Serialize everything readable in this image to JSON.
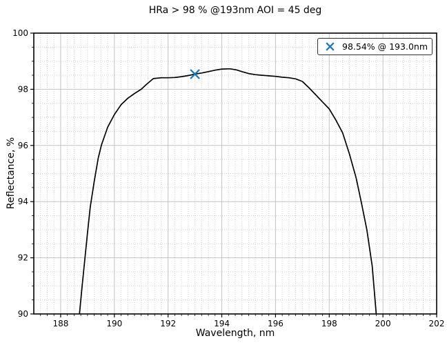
{
  "chart_data": {
    "type": "line",
    "title": "HRa > 98 % @193nm AOI = 45 deg",
    "xlabel": "Wavelength, nm",
    "ylabel": "Reflectance, %",
    "xlim": [
      187,
      202
    ],
    "ylim": [
      90,
      100
    ],
    "xticks": [
      188,
      190,
      192,
      194,
      196,
      198,
      200,
      202
    ],
    "yticks": [
      90,
      92,
      94,
      96,
      98,
      100
    ],
    "x_minor_step": 0.25,
    "y_minor_step": 0.5,
    "grid": true,
    "legend": {
      "label": "98.54% @ 193.0nm",
      "position": "upper right"
    },
    "marker": {
      "x": 193.0,
      "y": 98.54,
      "shape": "x",
      "color": "#1f77b4"
    },
    "series": [
      {
        "name": "reflectance",
        "color": "#000000",
        "points": [
          [
            188.7,
            90.0
          ],
          [
            188.8,
            91.0
          ],
          [
            188.9,
            91.95
          ],
          [
            189.0,
            92.9
          ],
          [
            189.1,
            93.8
          ],
          [
            189.25,
            94.72
          ],
          [
            189.4,
            95.55
          ],
          [
            189.52,
            96.02
          ],
          [
            189.75,
            96.65
          ],
          [
            190.0,
            97.1
          ],
          [
            190.25,
            97.45
          ],
          [
            190.5,
            97.68
          ],
          [
            190.75,
            97.85
          ],
          [
            191.0,
            98.0
          ],
          [
            191.2,
            98.18
          ],
          [
            191.45,
            98.38
          ],
          [
            191.75,
            98.41
          ],
          [
            192.0,
            98.41
          ],
          [
            192.25,
            98.42
          ],
          [
            192.5,
            98.45
          ],
          [
            192.75,
            98.49
          ],
          [
            193.0,
            98.54
          ],
          [
            193.25,
            98.58
          ],
          [
            193.5,
            98.63
          ],
          [
            193.75,
            98.68
          ],
          [
            194.0,
            98.72
          ],
          [
            194.3,
            98.73
          ],
          [
            194.55,
            98.69
          ],
          [
            194.75,
            98.63
          ],
          [
            195.0,
            98.56
          ],
          [
            195.25,
            98.52
          ],
          [
            195.5,
            98.5
          ],
          [
            195.75,
            98.48
          ],
          [
            196.0,
            98.46
          ],
          [
            196.25,
            98.43
          ],
          [
            196.5,
            98.41
          ],
          [
            196.75,
            98.37
          ],
          [
            197.0,
            98.28
          ],
          [
            197.25,
            98.05
          ],
          [
            197.5,
            97.8
          ],
          [
            197.75,
            97.55
          ],
          [
            198.0,
            97.3
          ],
          [
            198.25,
            96.9
          ],
          [
            198.5,
            96.45
          ],
          [
            198.75,
            95.7
          ],
          [
            199.0,
            94.85
          ],
          [
            199.2,
            93.95
          ],
          [
            199.4,
            93.0
          ],
          [
            199.6,
            91.7
          ],
          [
            199.75,
            90.0
          ]
        ]
      }
    ],
    "colors": {
      "line": "#000000",
      "marker": "#1f77b4",
      "grid_major": "#c2c2c2",
      "grid_minor": "#d0d0d0",
      "spine": "#000000",
      "text": "#000000",
      "background": "#ffffff"
    }
  }
}
